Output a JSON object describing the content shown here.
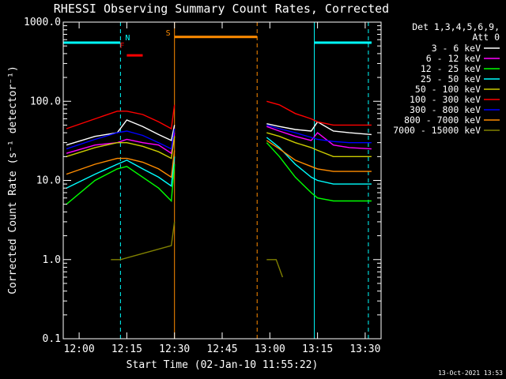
{
  "chart_data": {
    "type": "line",
    "title": "RHESSI Observing Summary Count Rates, Corrected",
    "xlabel": "Start Time (02-Jan-10 11:55:22)",
    "ylabel": "Corrected Count Rate (s⁻¹ detector⁻¹)",
    "ylim": [
      0.1,
      1000
    ],
    "y_scale": "log",
    "xlim_minutes": [
      "11:55",
      "13:35"
    ],
    "x_ticks": [
      "12:00",
      "12:15",
      "12:30",
      "12:45",
      "13:00",
      "13:15",
      "13:30"
    ],
    "y_ticks": [
      "0.1",
      "1.0",
      "10.0",
      "100.0",
      "1000.0"
    ],
    "legend_header": [
      "Det 1,3,4,5,6,9,",
      "Att 0"
    ],
    "legend_placement": "right",
    "timestamp": "13-Oct-2021 13:53",
    "markers": {
      "N": "N",
      "F": "F",
      "S": "S"
    },
    "vlines": [
      {
        "time": "11:55",
        "color": "#00ffff",
        "style": "solid"
      },
      {
        "time": "12:13",
        "color": "#00ffff",
        "style": "dashed"
      },
      {
        "time": "12:30",
        "color": "#ff8c00",
        "style": "solid"
      },
      {
        "time": "12:56",
        "color": "#ff8c00",
        "style": "dashed"
      },
      {
        "time": "13:14",
        "color": "#00ffff",
        "style": "solid"
      },
      {
        "time": "13:31",
        "color": "#00ffff",
        "style": "dashed"
      }
    ],
    "bars": [
      {
        "name": "N",
        "start": "11:55",
        "end": "12:13",
        "value": 550,
        "color": "#00ffff"
      },
      {
        "name": "F",
        "start": "12:15",
        "end": "12:20",
        "value": 380,
        "color": "#ff0000"
      },
      {
        "name": "S",
        "start": "12:30",
        "end": "12:56",
        "value": 650,
        "color": "#ff8c00"
      },
      {
        "name": "N",
        "start": "13:14",
        "end": "13:32",
        "value": 550,
        "color": "#00ffff"
      }
    ],
    "series": [
      {
        "name": "3 - 6 keV",
        "color": "#ffffff",
        "points": [
          [
            "11:56",
            28
          ],
          [
            "12:05",
            36
          ],
          [
            "12:12",
            40
          ],
          [
            "12:15",
            58
          ],
          [
            "12:20",
            48
          ],
          [
            "12:25",
            38
          ],
          [
            "12:29",
            32
          ],
          [
            "12:30",
            50
          ],
          [
            "12:59",
            52
          ],
          [
            "13:03",
            48
          ],
          [
            "13:08",
            44
          ],
          [
            "13:13",
            42
          ],
          [
            "13:15",
            55
          ],
          [
            "13:20",
            42
          ],
          [
            "13:25",
            40
          ],
          [
            "13:32",
            38
          ]
        ]
      },
      {
        "name": "6 - 12 keV",
        "color": "#ff00ff",
        "points": [
          [
            "11:56",
            22
          ],
          [
            "12:05",
            28
          ],
          [
            "12:12",
            30
          ],
          [
            "12:15",
            33
          ],
          [
            "12:20",
            30
          ],
          [
            "12:25",
            28
          ],
          [
            "12:29",
            22
          ],
          [
            "12:30",
            40
          ],
          [
            "12:59",
            48
          ],
          [
            "13:03",
            42
          ],
          [
            "13:08",
            36
          ],
          [
            "13:13",
            32
          ],
          [
            "13:15",
            40
          ],
          [
            "13:20",
            28
          ],
          [
            "13:25",
            26
          ],
          [
            "13:32",
            25
          ]
        ]
      },
      {
        "name": "12 - 25 keV",
        "color": "#00ff00",
        "points": [
          [
            "11:56",
            5
          ],
          [
            "12:05",
            10
          ],
          [
            "12:12",
            14
          ],
          [
            "12:15",
            15
          ],
          [
            "12:20",
            11
          ],
          [
            "12:25",
            8
          ],
          [
            "12:29",
            5.5
          ],
          [
            "12:30",
            16
          ],
          [
            "12:59",
            30
          ],
          [
            "13:03",
            20
          ],
          [
            "13:08",
            11
          ],
          [
            "13:13",
            7
          ],
          [
            "13:15",
            6
          ],
          [
            "13:20",
            5.5
          ],
          [
            "13:25",
            5.5
          ],
          [
            "13:32",
            5.5
          ]
        ]
      },
      {
        "name": "25 - 50 keV",
        "color": "#00ffff",
        "points": [
          [
            "11:56",
            8
          ],
          [
            "12:05",
            12
          ],
          [
            "12:12",
            16
          ],
          [
            "12:15",
            18
          ],
          [
            "12:20",
            14
          ],
          [
            "12:25",
            11
          ],
          [
            "12:29",
            8.5
          ],
          [
            "12:30",
            20
          ],
          [
            "12:59",
            35
          ],
          [
            "13:03",
            26
          ],
          [
            "13:08",
            16
          ],
          [
            "13:13",
            11
          ],
          [
            "13:15",
            10
          ],
          [
            "13:20",
            9
          ],
          [
            "13:25",
            9
          ],
          [
            "13:32",
            9
          ]
        ]
      },
      {
        "name": "50 - 100 keV",
        "color": "#cccc00",
        "points": [
          [
            "11:56",
            20
          ],
          [
            "12:05",
            26
          ],
          [
            "12:12",
            30
          ],
          [
            "12:15",
            30
          ],
          [
            "12:20",
            27
          ],
          [
            "12:25",
            23
          ],
          [
            "12:29",
            19
          ],
          [
            "12:30",
            36
          ],
          [
            "12:59",
            40
          ],
          [
            "13:03",
            36
          ],
          [
            "13:08",
            30
          ],
          [
            "13:13",
            26
          ],
          [
            "13:15",
            24
          ],
          [
            "13:20",
            20
          ],
          [
            "13:25",
            20
          ],
          [
            "13:32",
            20
          ]
        ]
      },
      {
        "name": "100 - 300 keV",
        "color": "#ff0000",
        "points": [
          [
            "11:56",
            45
          ],
          [
            "12:05",
            60
          ],
          [
            "12:12",
            75
          ],
          [
            "12:15",
            75
          ],
          [
            "12:20",
            68
          ],
          [
            "12:25",
            55
          ],
          [
            "12:29",
            45
          ],
          [
            "12:30",
            90
          ],
          [
            "12:59",
            100
          ],
          [
            "13:03",
            90
          ],
          [
            "13:08",
            70
          ],
          [
            "13:13",
            60
          ],
          [
            "13:15",
            55
          ],
          [
            "13:20",
            50
          ],
          [
            "13:25",
            50
          ],
          [
            "13:32",
            50
          ]
        ]
      },
      {
        "name": "300 - 800 keV",
        "color": "#0000ff",
        "points": [
          [
            "11:56",
            25
          ],
          [
            "12:05",
            33
          ],
          [
            "12:12",
            40
          ],
          [
            "12:15",
            42
          ],
          [
            "12:20",
            37
          ],
          [
            "12:25",
            30
          ],
          [
            "12:29",
            25
          ],
          [
            "12:30",
            45
          ],
          [
            "12:59",
            50
          ],
          [
            "13:03",
            45
          ],
          [
            "13:08",
            40
          ],
          [
            "13:13",
            35
          ],
          [
            "13:15",
            33
          ],
          [
            "13:20",
            31
          ],
          [
            "13:25",
            30
          ],
          [
            "13:32",
            30
          ]
        ]
      },
      {
        "name": "800 - 7000 keV",
        "color": "#ff8c00",
        "points": [
          [
            "11:56",
            12
          ],
          [
            "12:05",
            16
          ],
          [
            "12:12",
            19
          ],
          [
            "12:15",
            19
          ],
          [
            "12:20",
            17
          ],
          [
            "12:25",
            14
          ],
          [
            "12:29",
            11
          ],
          [
            "12:30",
            24
          ],
          [
            "12:59",
            32
          ],
          [
            "13:03",
            25
          ],
          [
            "13:08",
            18
          ],
          [
            "13:13",
            15
          ],
          [
            "13:15",
            14
          ],
          [
            "13:20",
            13
          ],
          [
            "13:25",
            13
          ],
          [
            "13:32",
            13
          ]
        ]
      },
      {
        "name": "7000 - 15000 keV",
        "color": "#808000",
        "points": [
          [
            "12:10",
            1
          ],
          [
            "12:13",
            1
          ],
          [
            "12:29",
            1.5
          ],
          [
            "12:30",
            3
          ],
          [
            "12:59",
            1
          ],
          [
            "13:02",
            1
          ],
          [
            "13:04",
            0.6
          ]
        ]
      }
    ]
  }
}
